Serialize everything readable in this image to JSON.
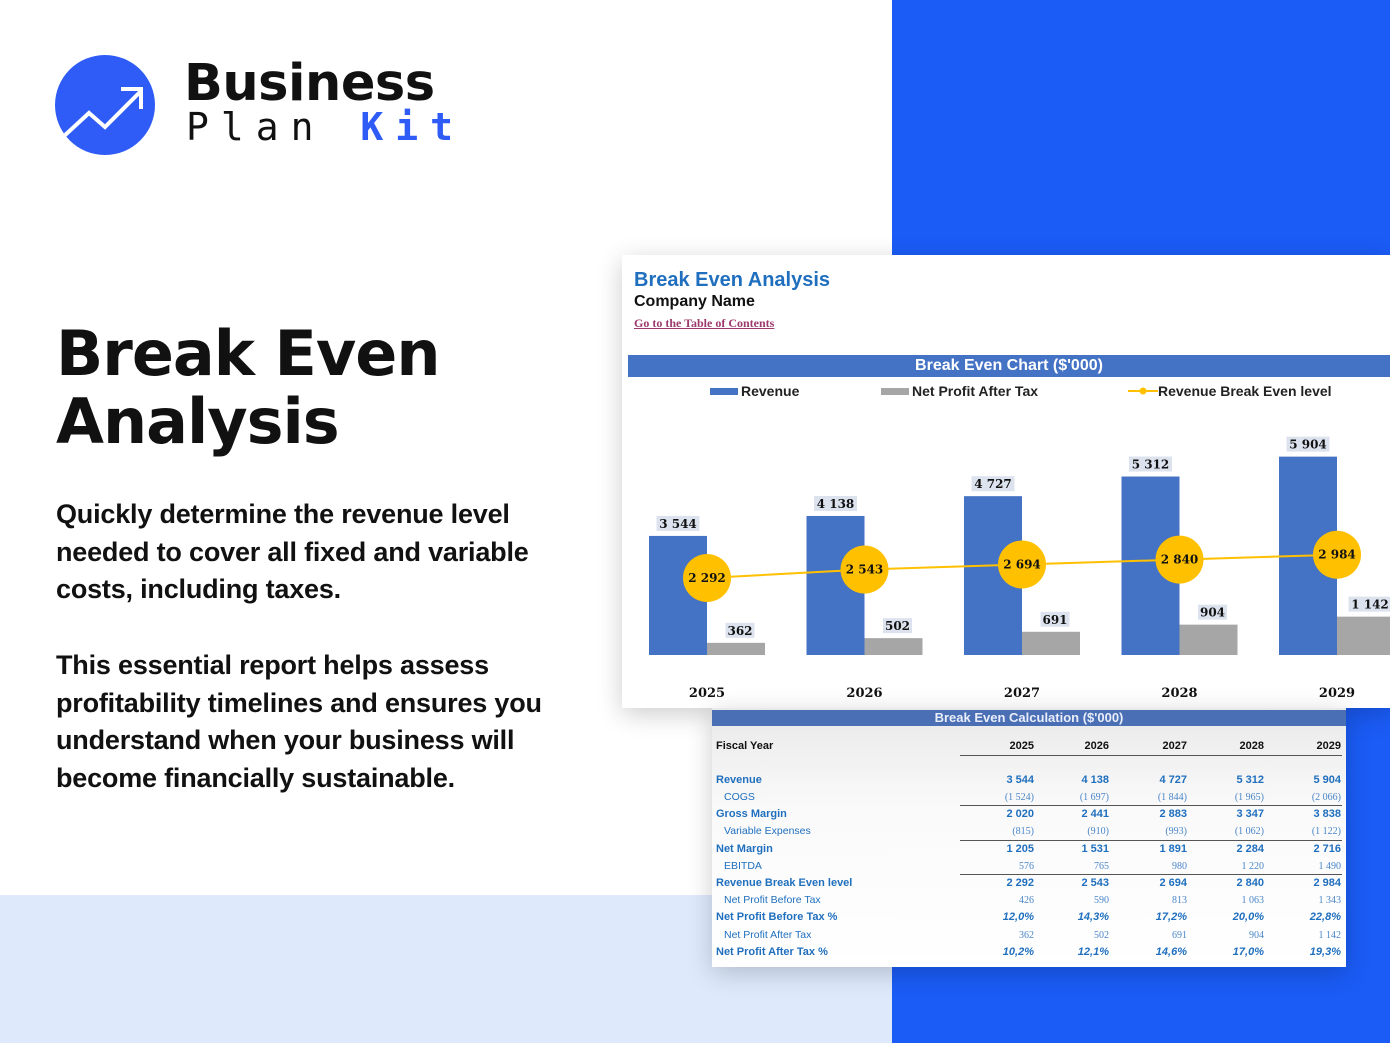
{
  "brand": {
    "line1": "Business",
    "line2a": "Plan",
    "line2b": "Kit",
    "accent": "#2f5cf6"
  },
  "hero": {
    "title": "Break Even Analysis",
    "para1": "Quickly determine the revenue level needed to cover all fixed and variable costs, including taxes.",
    "para2": "This essential report helps assess profitability timelines and ensures you understand when your business will become financially sustainable."
  },
  "sheet": {
    "title": "Break Even Analysis",
    "company": "Company Name",
    "toc_link": "Go to the Table of Contents"
  },
  "chart_data": {
    "type": "bar",
    "title": "Break Even Chart ($'000)",
    "categories": [
      "2025",
      "2026",
      "2027",
      "2028",
      "2029"
    ],
    "series": [
      {
        "name": "Revenue",
        "kind": "bar",
        "color": "#4472c4",
        "values": [
          3544,
          4138,
          4727,
          5312,
          5904
        ]
      },
      {
        "name": "Net Profit After Tax",
        "kind": "bar",
        "color": "#a6a6a6",
        "values": [
          362,
          502,
          691,
          904,
          1142
        ]
      },
      {
        "name": "Revenue Break Even level",
        "kind": "line",
        "color": "#ffc000",
        "values": [
          2292,
          2543,
          2694,
          2840,
          2984
        ]
      }
    ],
    "labels": {
      "Revenue": [
        "3 544",
        "4 138",
        "4 727",
        "5 312",
        "5 904"
      ],
      "Net Profit After Tax": [
        "362",
        "502",
        "691",
        "904",
        "1 142"
      ],
      "Revenue Break Even level": [
        "2 292",
        "2 543",
        "2 694",
        "2 840",
        "2 984"
      ]
    },
    "legend": "top",
    "grid": false
  },
  "table": {
    "title": "Break Even Calculation ($'000)",
    "header": {
      "label": "Fiscal Year",
      "values": [
        "2025",
        "2026",
        "2027",
        "2028",
        "2029"
      ]
    },
    "rows": [
      {
        "label": "Revenue",
        "values": [
          "3 544",
          "4 138",
          "4 727",
          "5 312",
          "5 904"
        ]
      },
      {
        "label": "COGS",
        "values": [
          "(1 524)",
          "(1 697)",
          "(1 844)",
          "(1 965)",
          "(2 066)"
        ]
      },
      {
        "label": "Gross Margin",
        "values": [
          "2 020",
          "2 441",
          "2 883",
          "3 347",
          "3 838"
        ]
      },
      {
        "label": "Variable Expenses",
        "values": [
          "(815)",
          "(910)",
          "(993)",
          "(1 062)",
          "(1 122)"
        ]
      },
      {
        "label": "Net Margin",
        "values": [
          "1 205",
          "1 531",
          "1 891",
          "2 284",
          "2 716"
        ]
      },
      {
        "label": "EBITDA",
        "values": [
          "576",
          "765",
          "980",
          "1 220",
          "1 490"
        ]
      },
      {
        "label": "Revenue Break Even level",
        "values": [
          "2 292",
          "2 543",
          "2 694",
          "2 840",
          "2 984"
        ]
      },
      {
        "label": "Net Profit Before Tax",
        "values": [
          "426",
          "590",
          "813",
          "1 063",
          "1 343"
        ]
      },
      {
        "label": "Net Profit Before Tax %",
        "values": [
          "12,0%",
          "14,3%",
          "17,2%",
          "20,0%",
          "22,8%"
        ]
      },
      {
        "label": "Net Profit After Tax",
        "values": [
          "362",
          "502",
          "691",
          "904",
          "1 142"
        ]
      },
      {
        "label": "Net Profit After Tax %",
        "values": [
          "10,2%",
          "12,1%",
          "14,6%",
          "17,0%",
          "19,3%"
        ]
      }
    ]
  }
}
